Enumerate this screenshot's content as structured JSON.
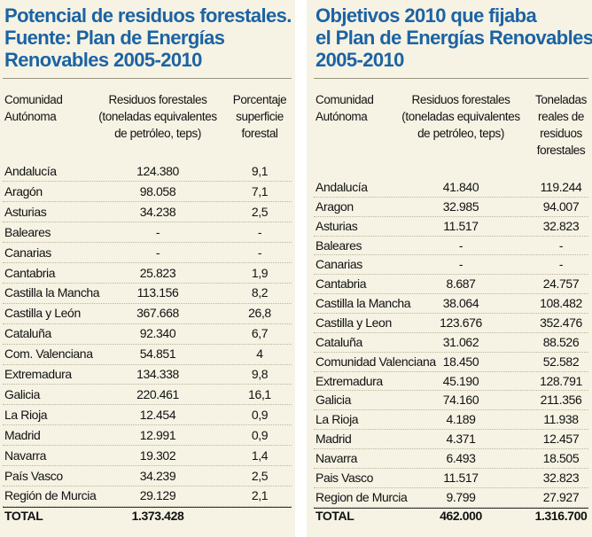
{
  "left": {
    "title": [
      "Potencial de residuos forestales.",
      "Fuente: Plan de Energías",
      "Renovables 2005-2010"
    ],
    "header": [
      [
        "Comunidad",
        "Autónoma"
      ],
      [
        "Residuos forestales",
        "(toneladas equivalentes",
        "de petróleo, teps)"
      ],
      [
        "Porcentaje",
        "superficie",
        "forestal"
      ]
    ],
    "rows": [
      [
        "Andalucía",
        "124.380",
        "9,1"
      ],
      [
        "Aragón",
        "98.058",
        "7,1"
      ],
      [
        "Asturias",
        "34.238",
        "2,5"
      ],
      [
        "Baleares",
        "-",
        "-"
      ],
      [
        "Canarias",
        "-",
        "-"
      ],
      [
        "Cantabria",
        "25.823",
        "1,9"
      ],
      [
        "Castilla la Mancha",
        "113.156",
        "8,2"
      ],
      [
        "Castilla y León",
        "367.668",
        "26,8"
      ],
      [
        "Cataluña",
        "92.340",
        "6,7"
      ],
      [
        "Com. Valenciana",
        "54.851",
        "4"
      ],
      [
        "Extremadura",
        "134.338",
        "9,8"
      ],
      [
        "Galicia",
        "220.461",
        "16,1"
      ],
      [
        "La Rioja",
        "12.454",
        "0,9"
      ],
      [
        "Madrid",
        "12.991",
        "0,9"
      ],
      [
        "Navarra",
        "19.302",
        "1,4"
      ],
      [
        "País Vasco",
        "34.239",
        "2,5"
      ],
      [
        "Región de Murcia",
        "29.129",
        "2,1"
      ]
    ],
    "total": [
      "TOTAL",
      "1.373.428",
      ""
    ]
  },
  "right": {
    "title": [
      "Objetivos 2010 que fijaba",
      "el Plan de Energías Renovables",
      "2005-2010"
    ],
    "header": [
      [
        "Comunidad",
        "Autónoma"
      ],
      [
        "Residuos forestales",
        "(toneladas equivalentes",
        "de petróleo, teps)"
      ],
      [
        "Toneladas",
        "reales de",
        "residuos",
        "forestales"
      ]
    ],
    "rows": [
      [
        "Andalucía",
        "41.840",
        "119.244"
      ],
      [
        "Aragon",
        "32.985",
        "94.007"
      ],
      [
        "Asturias",
        "11.517",
        "32.823"
      ],
      [
        "Baleares",
        "-",
        "-"
      ],
      [
        "Canarias",
        "-",
        "-"
      ],
      [
        "Cantabria",
        "8.687",
        "24.757"
      ],
      [
        "Castilla la Mancha",
        "38.064",
        "108.482"
      ],
      [
        "Castilla y Leon",
        "123.676",
        "352.476"
      ],
      [
        "Cataluña",
        "31.062",
        "88.526"
      ],
      [
        "Comunidad Valenciana",
        "18.450",
        "52.582"
      ],
      [
        "Extremadura",
        "45.190",
        "128.791"
      ],
      [
        "Galicia",
        "74.160",
        "211.356"
      ],
      [
        "La Rioja",
        "4.189",
        "11.938"
      ],
      [
        "Madrid",
        "4.371",
        "12.457"
      ],
      [
        "Navarra",
        "6.493",
        "18.505"
      ],
      [
        "Pais Vasco",
        "11.517",
        "32.823"
      ],
      [
        "Region de Murcia",
        "9.799",
        "27.927"
      ]
    ],
    "total": [
      "TOTAL",
      "462.000",
      "1.316.700"
    ]
  }
}
